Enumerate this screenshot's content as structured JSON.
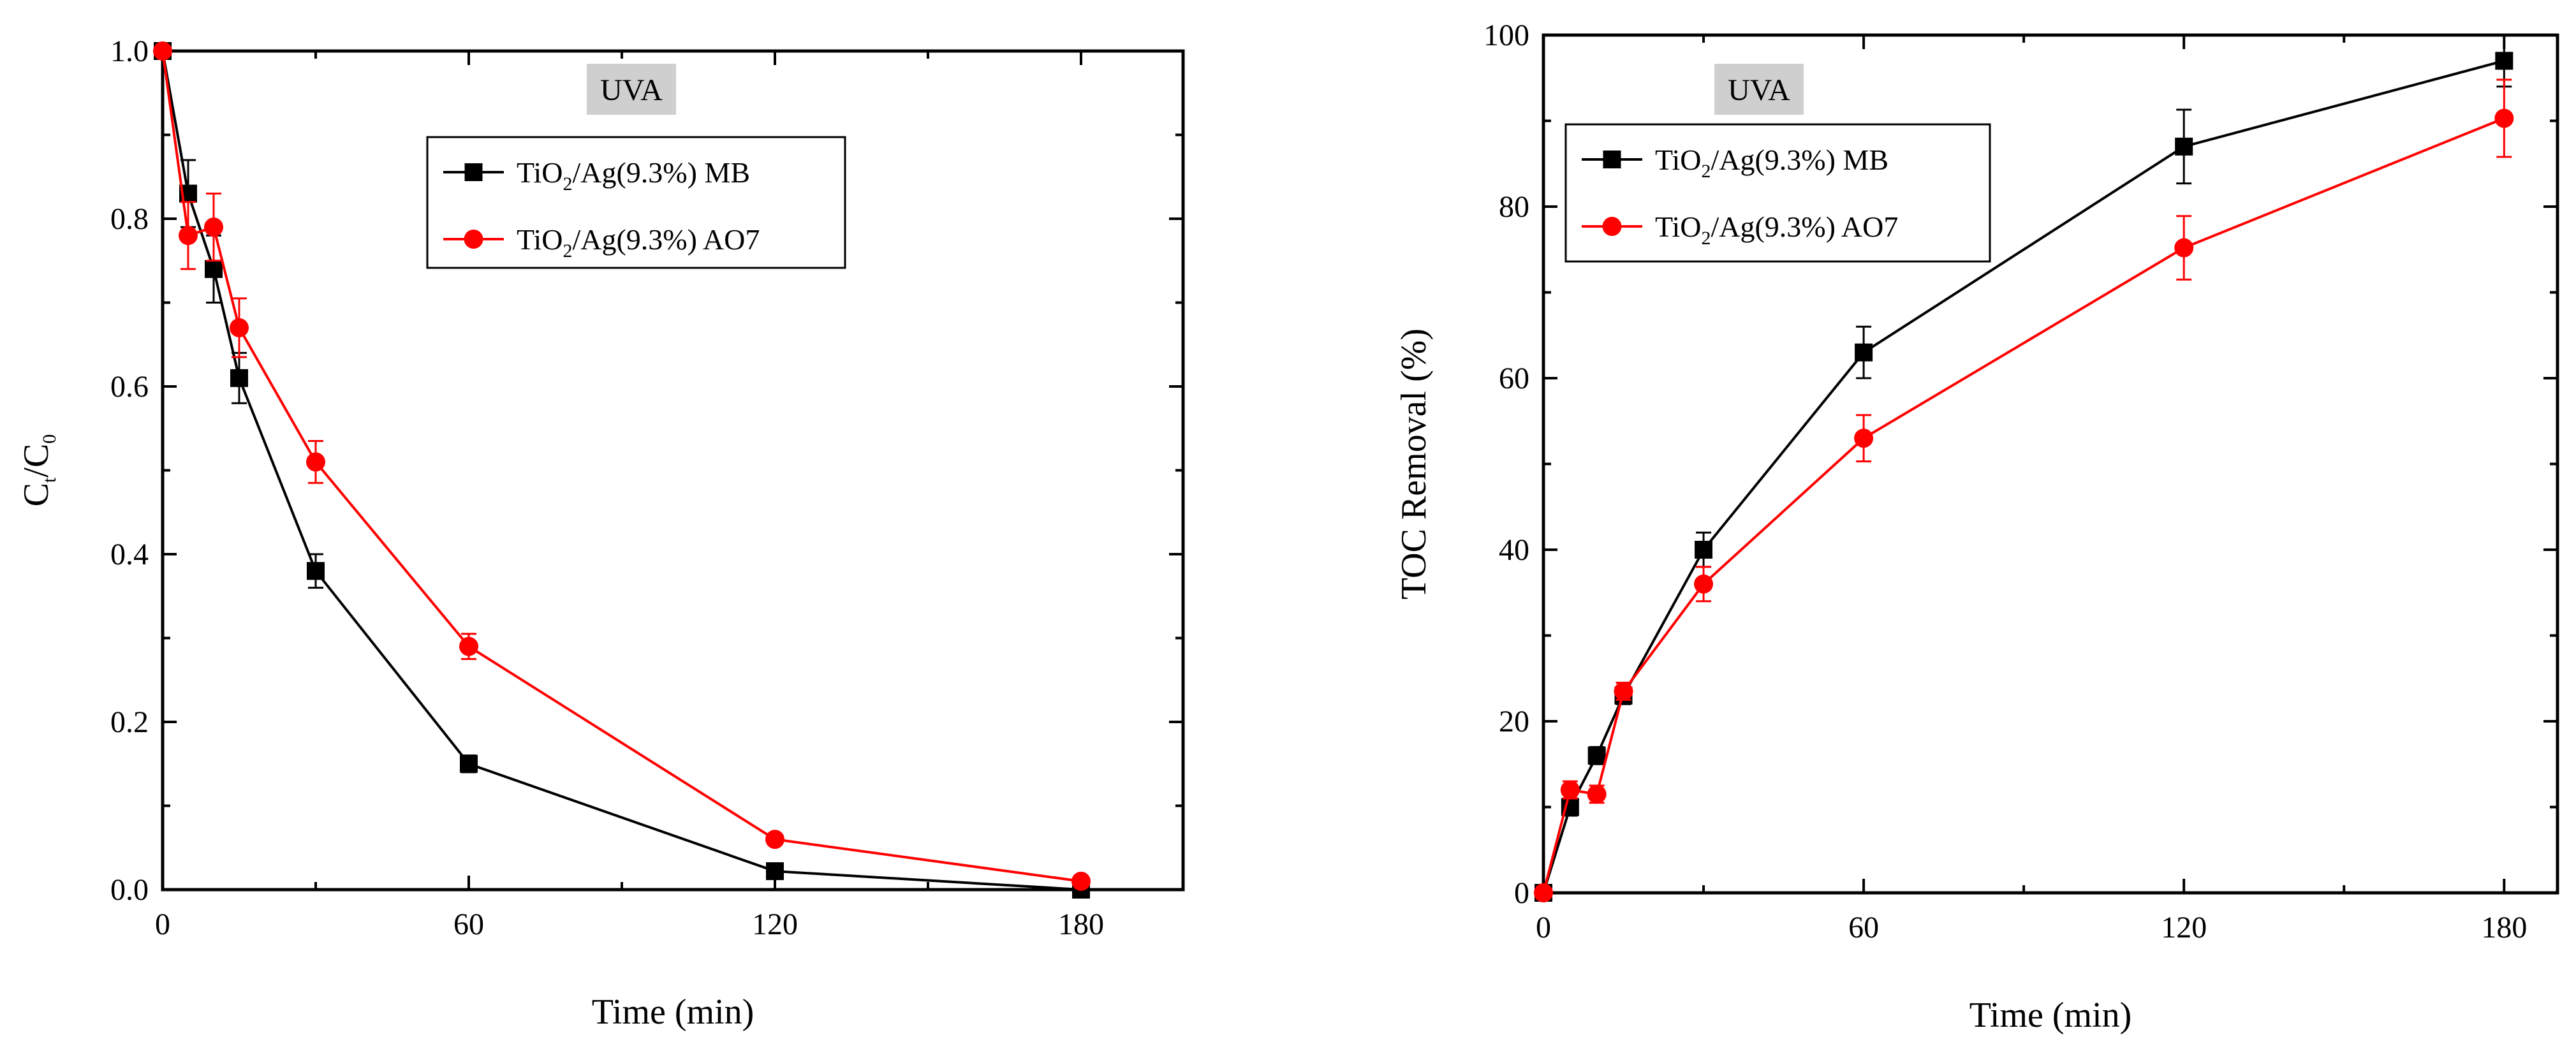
{
  "chart_data": [
    {
      "type": "line",
      "id": "left",
      "badge": "UVA",
      "xlabel": "Time (min)",
      "ylabel": {
        "base": "C",
        "sub1": "t",
        "mid": "/C",
        "sub2": "0"
      },
      "xlim": [
        0,
        200
      ],
      "ylim": [
        0,
        1.0
      ],
      "xticks": [
        0,
        60,
        120,
        180
      ],
      "yticks": [
        0.0,
        0.2,
        0.4,
        0.6,
        0.8,
        1.0
      ],
      "ytick_labels": [
        "0.0",
        "0.2",
        "0.4",
        "0.6",
        "0.8",
        "1.0"
      ],
      "legend_position": "top-center",
      "series": [
        {
          "name": "TiO2/Ag(9.3%) MB",
          "label_pre": "TiO",
          "label_sub": "2",
          "label_post": "/Ag(9.3%) MB",
          "color": "#000000",
          "marker": "square",
          "x": [
            0,
            5,
            10,
            15,
            30,
            60,
            120,
            180
          ],
          "y": [
            1.0,
            0.83,
            0.74,
            0.61,
            0.38,
            0.15,
            0.022,
            0.0
          ],
          "err": [
            0,
            0.04,
            0.04,
            0.03,
            0.02,
            0.01,
            0.005,
            0
          ]
        },
        {
          "name": "TiO2/Ag(9.3%) AO7",
          "label_pre": "TiO",
          "label_sub": "2",
          "label_post": "/Ag(9.3%) AO7",
          "color": "#ff0000",
          "marker": "circle",
          "x": [
            0,
            5,
            10,
            15,
            30,
            60,
            120,
            180
          ],
          "y": [
            1.0,
            0.78,
            0.79,
            0.67,
            0.51,
            0.29,
            0.06,
            0.01
          ],
          "err": [
            0,
            0.04,
            0.04,
            0.035,
            0.025,
            0.015,
            0.005,
            0
          ]
        }
      ]
    },
    {
      "type": "line",
      "id": "right",
      "badge": "UVA",
      "xlabel": "Time (min)",
      "ylabel": {
        "text": "TOC Removal (%)"
      },
      "xlim": [
        0,
        190
      ],
      "ylim": [
        0,
        100
      ],
      "xticks": [
        0,
        60,
        120,
        180
      ],
      "yticks": [
        0,
        20,
        40,
        60,
        80,
        100
      ],
      "ytick_labels": [
        "0",
        "20",
        "40",
        "60",
        "80",
        "100"
      ],
      "legend_position": "top-left",
      "series": [
        {
          "name": "TiO2/Ag(9.3%) MB",
          "label_pre": "TiO",
          "label_sub": "2",
          "label_post": "/Ag(9.3%) MB",
          "color": "#000000",
          "marker": "square",
          "x": [
            0,
            5,
            10,
            15,
            30,
            60,
            120,
            180
          ],
          "y": [
            0,
            10,
            16,
            23,
            40,
            63,
            87,
            97
          ],
          "err": [
            0,
            1,
            1,
            1,
            2,
            3,
            4.3,
            3
          ]
        },
        {
          "name": "TiO2/Ag(9.3%) AO7",
          "label_pre": "TiO",
          "label_sub": "2",
          "label_post": "/Ag(9.3%) AO7",
          "color": "#ff0000",
          "marker": "circle",
          "x": [
            0,
            5,
            10,
            15,
            30,
            60,
            120,
            180
          ],
          "y": [
            0,
            12,
            11.5,
            23.5,
            36,
            53,
            75.2,
            90.3
          ],
          "err": [
            0,
            1,
            1,
            1,
            2,
            2.7,
            3.7,
            4.5
          ]
        }
      ]
    }
  ]
}
